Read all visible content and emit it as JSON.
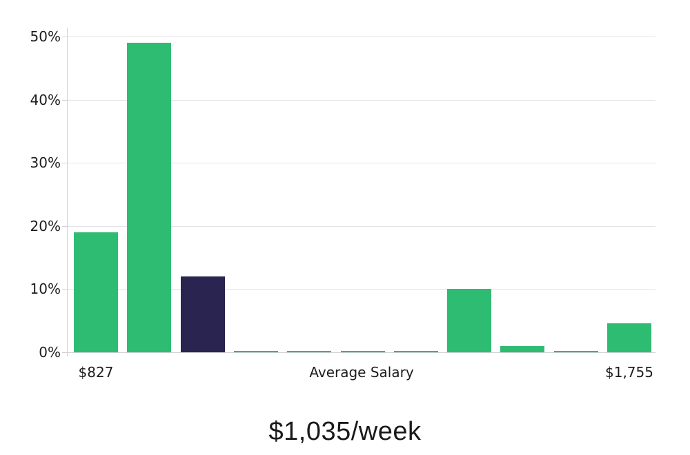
{
  "chart_data": {
    "type": "bar",
    "title": "$1,035/week",
    "x_axis_label": "Average Salary",
    "x_first_tick": "$827",
    "x_last_tick": "$1,755",
    "ylim": [
      0,
      50
    ],
    "y_tick_values": [
      0,
      10,
      20,
      30,
      40,
      50
    ],
    "y_tick_labels": [
      "0%",
      "10%",
      "20%",
      "30%",
      "40%",
      "50%"
    ],
    "values": [
      19,
      49,
      12,
      0.2,
      0.2,
      0.2,
      0.2,
      10,
      1,
      0.2,
      4.6
    ],
    "highlight_index": 2,
    "grid": true,
    "legend_position": "none",
    "colors": {
      "bar": "#2EBC72",
      "highlight_bar": "#292550",
      "gridline": "#E4E4E4",
      "axis": "#D2D2D2",
      "tick_text": "#1C1C1C",
      "title_text": "#1A1A1A",
      "background": "#FFFFFF"
    }
  }
}
